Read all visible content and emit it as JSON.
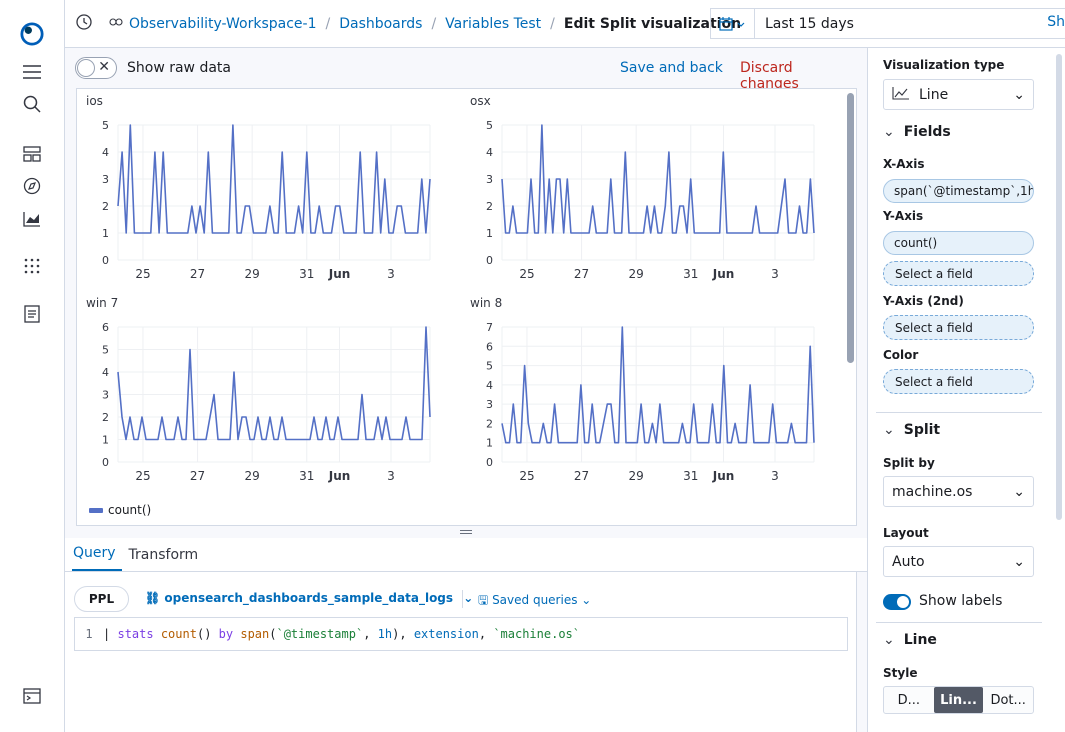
{
  "breadcrumbs": [
    "Observability-Workspace-1",
    "Dashboards",
    "Variables Test"
  ],
  "page_title": "Edit Split visualization",
  "date_range": "Last 15 days",
  "show_label": "Sh",
  "toolbar": {
    "raw_label": "Show raw data",
    "save_label": "Save and back",
    "discard_label": "Discard changes"
  },
  "chart_data": [
    {
      "type": "line",
      "title": "ios",
      "yticks": [
        "0",
        "1",
        "2",
        "3",
        "4",
        "5"
      ],
      "xticks": [
        "25",
        "27",
        "29",
        "31",
        "Jun",
        "3"
      ],
      "values": [
        2,
        4,
        1,
        5,
        1,
        1,
        1,
        1,
        1,
        4,
        1,
        4,
        1,
        1,
        1,
        1,
        1,
        1,
        2,
        1,
        2,
        1,
        4,
        1,
        1,
        1,
        1,
        1,
        5,
        1,
        1,
        2,
        2,
        1,
        1,
        1,
        1,
        2,
        1,
        1,
        4,
        1,
        1,
        1,
        2,
        1,
        4,
        1,
        1,
        2,
        1,
        1,
        1,
        2,
        2,
        1,
        1,
        1,
        1,
        4,
        1,
        1,
        1,
        4,
        1,
        3,
        1,
        1,
        2,
        2,
        1,
        1,
        1,
        1,
        3,
        1,
        3
      ]
    },
    {
      "type": "line",
      "title": "osx",
      "yticks": [
        "0",
        "1",
        "2",
        "3",
        "4",
        "5"
      ],
      "xticks": [
        "25",
        "27",
        "29",
        "31",
        "Jun",
        "3"
      ],
      "values": [
        3,
        1,
        1,
        2,
        1,
        1,
        1,
        1,
        3,
        1,
        1,
        5,
        1,
        3,
        1,
        3,
        3,
        1,
        3,
        1,
        1,
        1,
        1,
        1,
        1,
        2,
        1,
        1,
        1,
        1,
        3,
        1,
        1,
        1,
        4,
        1,
        1,
        1,
        1,
        1,
        2,
        1,
        2,
        1,
        1,
        2,
        4,
        1,
        1,
        2,
        2,
        1,
        3,
        1,
        1,
        1,
        1,
        1,
        1,
        1,
        1,
        4,
        1,
        1,
        1,
        1,
        1,
        1,
        1,
        1,
        2,
        1,
        1,
        1,
        1,
        1,
        1,
        2,
        3,
        1,
        1,
        1,
        2,
        1,
        1,
        3,
        1
      ]
    },
    {
      "type": "line",
      "title": "win 7",
      "yticks": [
        "0",
        "1",
        "2",
        "3",
        "4",
        "5",
        "6"
      ],
      "xticks": [
        "25",
        "27",
        "29",
        "31",
        "Jun",
        "3"
      ],
      "values": [
        4,
        2,
        1,
        2,
        1,
        1,
        2,
        1,
        1,
        1,
        1,
        2,
        1,
        1,
        1,
        2,
        1,
        1,
        5,
        1,
        1,
        1,
        1,
        2,
        3,
        1,
        1,
        1,
        1,
        4,
        1,
        2,
        2,
        1,
        1,
        2,
        1,
        1,
        2,
        1,
        1,
        2,
        1,
        1,
        1,
        1,
        1,
        1,
        1,
        2,
        1,
        1,
        2,
        1,
        1,
        2,
        1,
        1,
        1,
        1,
        1,
        3,
        1,
        1,
        1,
        2,
        1,
        2,
        1,
        1,
        1,
        1,
        2,
        1,
        1,
        1,
        1,
        6,
        2
      ]
    },
    {
      "type": "line",
      "title": "win 8",
      "yticks": [
        "0",
        "1",
        "2",
        "3",
        "4",
        "5",
        "6",
        "7"
      ],
      "xticks": [
        "25",
        "27",
        "29",
        "31",
        "Jun",
        "3"
      ],
      "values": [
        2,
        1,
        1,
        3,
        1,
        1,
        5,
        2,
        1,
        1,
        1,
        2,
        1,
        1,
        3,
        1,
        1,
        1,
        1,
        1,
        1,
        4,
        1,
        1,
        3,
        1,
        1,
        2,
        3,
        3,
        1,
        1,
        7,
        1,
        1,
        1,
        1,
        3,
        1,
        1,
        2,
        1,
        3,
        1,
        1,
        1,
        1,
        1,
        2,
        1,
        1,
        3,
        1,
        1,
        1,
        1,
        3,
        1,
        1,
        5,
        1,
        1,
        2,
        1,
        1,
        1,
        4,
        1,
        1,
        1,
        1,
        1,
        3,
        1,
        1,
        1,
        1,
        2,
        1,
        1,
        1,
        1,
        6,
        1
      ]
    }
  ],
  "legend": {
    "label": "count()",
    "color": "#5470c6"
  },
  "query": {
    "tabs": [
      "Query",
      "Transform"
    ],
    "language": "PPL",
    "index": "opensearch_dashboards_sample_data_logs",
    "saved_queries": "Saved queries",
    "line_number": "1",
    "text": "| stats count() by span(`@timestamp`, 1h), extension, `machine.os`"
  },
  "config": {
    "viz_type_label": "Visualization type",
    "viz_type": "Line",
    "fields_section": "Fields",
    "xaxis_label": "X-Axis",
    "xaxis_value": "span(`@timestamp`,1h)",
    "yaxis_label": "Y-Axis",
    "yaxis_value": "count()",
    "select_field": "Select a field",
    "yaxis2_label": "Y-Axis (2nd)",
    "color_label": "Color",
    "split_section": "Split",
    "split_by_label": "Split by",
    "split_by_value": "machine.os",
    "layout_label": "Layout",
    "layout_value": "Auto",
    "show_labels": "Show labels",
    "line_section": "Line",
    "style_label": "Style",
    "style_options": [
      "D...",
      "Lin...",
      "Dot..."
    ]
  }
}
